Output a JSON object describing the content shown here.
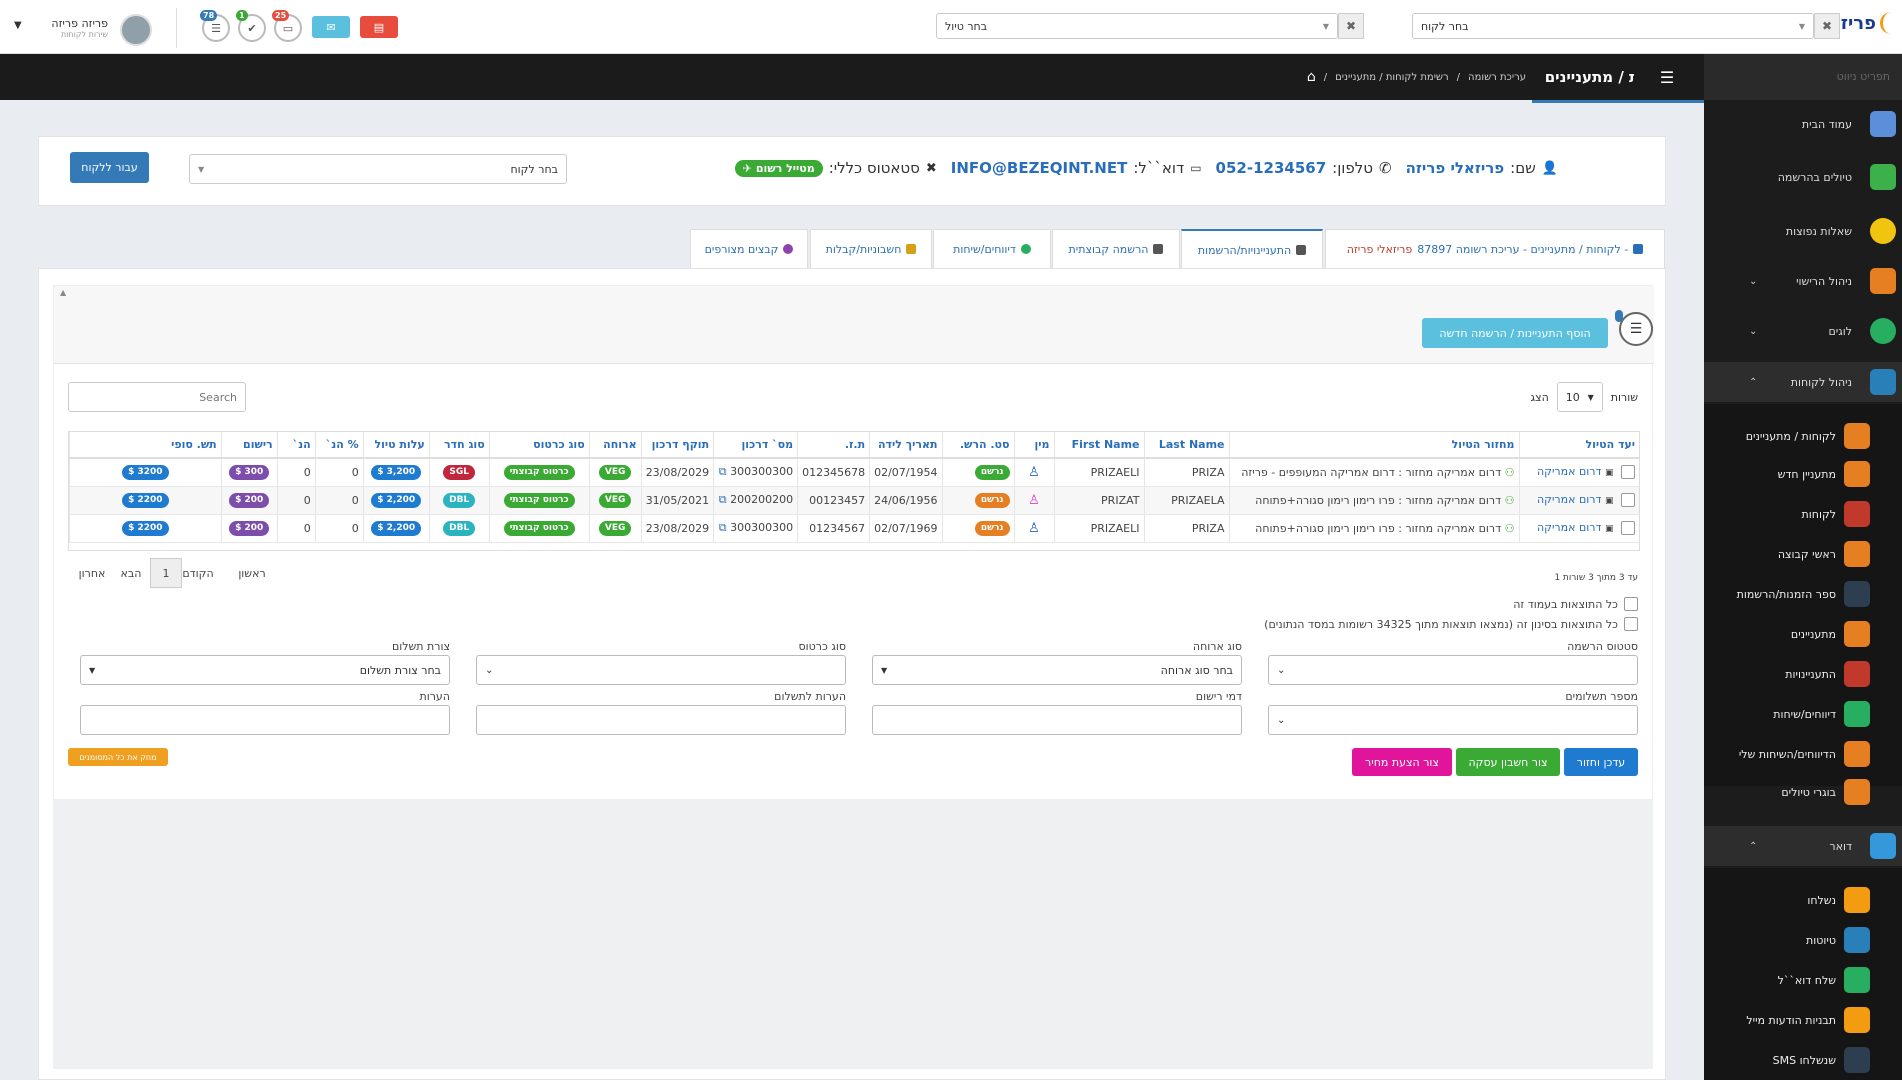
{
  "topbar": {
    "client_select_placeholder": "בחר לקוח",
    "trip_select_placeholder": "בחר טיול",
    "badge_counts": [
      "78",
      "1",
      "25"
    ],
    "user_name": "פריזה פריזה",
    "user_role": "שירות לקוחות",
    "logo_text": "פריזה"
  },
  "sidebar": {
    "tagline": "תפריט ניווט",
    "items": [
      {
        "label": "עמוד הבית",
        "icon": "home-icon",
        "color": "#5b8fd9"
      },
      {
        "label": "טיולים בהרשמה",
        "icon": "arrow-icon",
        "color": "#3cb04a"
      },
      {
        "label": "שאלות נפוצות",
        "icon": "question-icon",
        "color": "#f1c40f"
      },
      {
        "label": "ניהול הרישוי",
        "icon": "certificate-icon",
        "color": "#e67e22"
      },
      {
        "label": "לוגים",
        "icon": "clock-icon",
        "color": "#27ae60"
      },
      {
        "label": "ניהול לקוחות",
        "icon": "register-icon",
        "color": "#2980b9"
      }
    ],
    "client_subitems": [
      {
        "label": "לקוחות / מתעניינים",
        "icon": "users-icon",
        "color": "#e67e22"
      },
      {
        "label": "מתעניין חדש",
        "icon": "user-add-icon",
        "color": "#e67e22"
      },
      {
        "label": "לקוחות",
        "icon": "users-icon",
        "color": "#c0392b"
      },
      {
        "label": "ראשי קבוצה",
        "icon": "user-icon",
        "color": "#e67e22"
      },
      {
        "label": "ספר הזמנות/הרשמות",
        "icon": "graduate-icon",
        "color": "#2c3e50"
      },
      {
        "label": "מתעניינים",
        "icon": "users-icon",
        "color": "#e67e22"
      },
      {
        "label": "התעניינויות",
        "icon": "document-icon",
        "color": "#c0392b"
      },
      {
        "label": "דיווחים/שיחות",
        "icon": "chat-icon",
        "color": "#27ae60"
      },
      {
        "label": "הדיווחים/השיחות שלי",
        "icon": "chat-user-icon",
        "color": "#e67e22"
      },
      {
        "label": "בוגרי טיולים",
        "icon": "graduate-icon",
        "color": "#e67e22"
      }
    ],
    "mail_section": {
      "label": "דואר",
      "icon": "mail-icon",
      "color": "#3498db"
    },
    "mail_subitems": [
      {
        "label": "נשלחו",
        "icon": "envelope-open-icon",
        "color": "#f39c12"
      },
      {
        "label": "טיוטות",
        "icon": "draft-icon",
        "color": "#2980b9"
      },
      {
        "label": "שלח דוא``ל",
        "icon": "send-mail-icon",
        "color": "#27ae60"
      },
      {
        "label": "תבניות הודעות מייל",
        "icon": "template-icon",
        "color": "#f39c12"
      },
      {
        "label": "SMS שנשלחו",
        "icon": "phone-icon",
        "color": "#2c3e50"
      }
    ]
  },
  "header": {
    "page_title": "לקוחות / מתעניינים",
    "breadcrumb": [
      "רשימת לקוחות / מתעניינים",
      "עריכת רשומה"
    ]
  },
  "client_info": {
    "name_label": "שם:",
    "name": "פריזאלי פריזה",
    "phone_label": "טלפון:",
    "phone": "052-1234567",
    "email_label": "דוא``ל:",
    "email": "INFO@BEZEQINT.NET",
    "status_label": "סטאטוס כללי:",
    "status": "מטייל רשום",
    "client_select_placeholder": "בחר לקוח",
    "goto_client_button": "עבור ללקוח"
  },
  "tabs": [
    {
      "label": "לקוחות / מתעניינים - עריכת רשומה 87897 -",
      "extra": "פריזאלי פריזה"
    },
    {
      "label": "התעניינויות/הרשמות"
    },
    {
      "label": "הרשמה קבוצתית"
    },
    {
      "label": "דיווחים/שיחות"
    },
    {
      "label": "חשבוניות/קבלות"
    },
    {
      "label": "קבצים מצורפים"
    }
  ],
  "content": {
    "add_button": "הוסף התעניינות / הרשמה חדשה",
    "show_label": "הצג",
    "page_size": "10",
    "rows_label": "שורות",
    "search_placeholder": "Search",
    "columns": [
      "יעד הטיול",
      "מחזור הטיול",
      "Last Name",
      "First Name",
      "מין",
      "סט. הרש.",
      "תאריך לידה",
      "ת.ז.",
      "מס` דרכון",
      "תוקף דרכון",
      "ארוחה",
      "סוג כרטוס",
      "סוג חדר",
      "עלות טיול",
      "% הנ`",
      "הנ`",
      "רישום",
      "תש. סופי"
    ],
    "rows": [
      {
        "dest": "דרום אמריקה",
        "cycle": "דרום אמריקה מחזור : דרום אמריקה המעופפים - פריזה",
        "last": "PRIZA",
        "first": "PRIZAELI",
        "gender": "m",
        "status": "נרשם",
        "status_color": "#3aaa35",
        "dob": "02/07/1954",
        "id": "012345678",
        "passport": "300300300",
        "pass_exp": "23/08/2029",
        "meal": "VEG",
        "ticket": "כרטוס קבוצתי",
        "room": "SGL",
        "room_color": "#c0263c",
        "cost": "3,200 $",
        "disc_pct": "0",
        "disc": "0",
        "reg": "300 $",
        "final": "3200 $"
      },
      {
        "dest": "דרום אמריקה",
        "cycle": "דרום אמריקה מחזור : פרו רימון רימון סגורה+פתוחה",
        "last": "PRIZAELA",
        "first": "PRIZAT",
        "gender": "f",
        "status": "נרשם",
        "status_color": "#e67e22",
        "dob": "24/06/1956",
        "id": "00123457",
        "passport": "200200200",
        "pass_exp": "31/05/2021",
        "meal": "VEG",
        "ticket": "כרטוס קבוצתי",
        "room": "DBL",
        "room_color": "#2bb3c0",
        "cost": "2,200 $",
        "disc_pct": "0",
        "disc": "0",
        "reg": "200 $",
        "final": "2200 $"
      },
      {
        "dest": "דרום אמריקה",
        "cycle": "דרום אמריקה מחזור : פרו רימון רימון סגורה+פתוחה",
        "last": "PRIZA",
        "first": "PRIZAELI",
        "gender": "m",
        "status": "נרשם",
        "status_color": "#e67e22",
        "dob": "02/07/1969",
        "id": "01234567",
        "passport": "300300300",
        "pass_exp": "23/08/2029",
        "meal": "VEG",
        "ticket": "כרטוס קבוצתי",
        "room": "DBL",
        "room_color": "#2bb3c0",
        "cost": "2,200 $",
        "disc_pct": "0",
        "disc": "0",
        "reg": "200 $",
        "final": "2200 $"
      }
    ],
    "pager_info": "1 עד 3 מתוך 3 שורות",
    "pager": {
      "first": "ראשון",
      "prev": "הקודם",
      "current": "1",
      "next": "הבא",
      "last": "אחרון"
    },
    "check_page": "כל התוצאות בעמוד זה",
    "check_all": "כל התוצאות בסינון זה (נמצאו תוצאות מתוך 34325 רשומות במסד הנתונים)",
    "form": {
      "reg_status_label": "סטטוס הרשמה",
      "meal_label": "סוג ארוחה",
      "meal_placeholder": "בחר סוג ארוחה",
      "ticket_label": "סוג כרטוס",
      "payment_label": "צורת תשלום",
      "payment_placeholder": "בחר צורת תשלום",
      "installments_label": "מספר תשלומים",
      "reg_fee_label": "דמי רישום",
      "payment_notes_label": "הערות לתשלום",
      "notes_label": "הערות"
    },
    "btn_update": "עדכן וחזור",
    "btn_invoice": "צור חשבון עסקה",
    "btn_quote": "צור הצעת מחיר",
    "btn_delete": "מחק את כל המסומנים"
  },
  "colors": {
    "accent": "#337ab7",
    "green": "#3aaa35",
    "purple": "#7c4dab",
    "blue_pill": "#1f7bd0"
  }
}
